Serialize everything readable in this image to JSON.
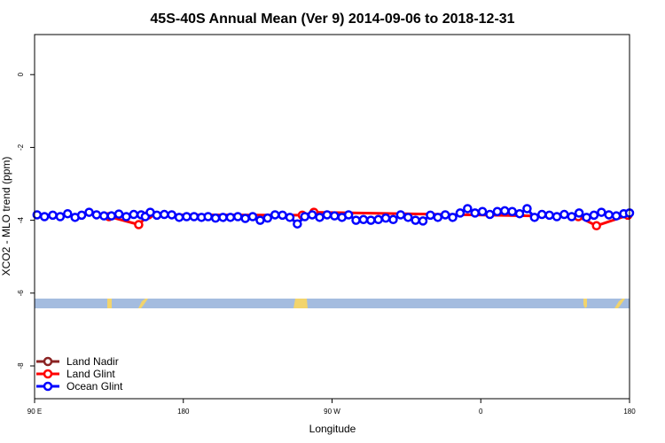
{
  "chart_data": {
    "type": "line",
    "title": "45S-40S Annual Mean (Ver 9)   2014-09-06 to 2018-12-31",
    "xlabel": "Longitude",
    "ylabel": "XCO2 - MLO trend (ppm)",
    "xlim": [
      90,
      450
    ],
    "ylim": [
      -8.9,
      1.1
    ],
    "xticks": [
      {
        "value": 90,
        "label": "90 E"
      },
      {
        "value": 180,
        "label": "180"
      },
      {
        "value": 270,
        "label": "90 W"
      },
      {
        "value": 360,
        "label": "0"
      },
      {
        "value": 450,
        "label": "90 E"
      },
      {
        "value": 540,
        "label": "180"
      }
    ],
    "yticks": [
      0,
      -2,
      -4,
      -6,
      -8
    ],
    "legend_position": "bottom-left",
    "series": [
      {
        "name": "Land Nadir",
        "color": "#8b2323",
        "points": []
      },
      {
        "name": "Land Glint",
        "color": "#ff0000",
        "points": [
          [
            135.0,
            -3.9
          ],
          [
            153.0,
            -4.12
          ],
          [
            159.0,
            -3.85
          ],
          [
            252.0,
            -3.86
          ],
          [
            259.0,
            -3.78
          ],
          [
            419.0,
            -3.9
          ],
          [
            430.0,
            -4.15
          ],
          [
            449.0,
            -3.86
          ]
        ]
      },
      {
        "name": "Ocean Glint",
        "color": "#0000ff",
        "points": [
          [
            91.5,
            -3.85
          ],
          [
            96.0,
            -3.9
          ],
          [
            101.0,
            -3.86
          ],
          [
            105.5,
            -3.9
          ],
          [
            110.0,
            -3.82
          ],
          [
            114.5,
            -3.92
          ],
          [
            118.5,
            -3.86
          ],
          [
            123.0,
            -3.78
          ],
          [
            127.5,
            -3.85
          ],
          [
            132.0,
            -3.88
          ],
          [
            136.5,
            -3.88
          ],
          [
            141.0,
            -3.83
          ],
          [
            145.5,
            -3.9
          ],
          [
            150.0,
            -3.84
          ],
          [
            154.5,
            -3.85
          ],
          [
            157.0,
            -3.9
          ],
          [
            160.0,
            -3.78
          ],
          [
            164.0,
            -3.86
          ],
          [
            168.5,
            -3.84
          ],
          [
            173.0,
            -3.85
          ],
          [
            177.5,
            -3.92
          ],
          [
            182.0,
            -3.9
          ],
          [
            186.5,
            -3.9
          ],
          [
            191.0,
            -3.92
          ],
          [
            195.0,
            -3.9
          ],
          [
            199.5,
            -3.94
          ],
          [
            204.0,
            -3.92
          ],
          [
            208.5,
            -3.92
          ],
          [
            213.0,
            -3.9
          ],
          [
            217.5,
            -3.95
          ],
          [
            222.0,
            -3.9
          ],
          [
            226.5,
            -4.0
          ],
          [
            231.0,
            -3.94
          ],
          [
            235.5,
            -3.85
          ],
          [
            240.0,
            -3.86
          ],
          [
            244.5,
            -3.92
          ],
          [
            249.0,
            -4.1
          ],
          [
            253.5,
            -3.9
          ],
          [
            258.0,
            -3.85
          ],
          [
            262.5,
            -3.92
          ],
          [
            267.0,
            -3.85
          ],
          [
            271.5,
            -3.88
          ],
          [
            276.0,
            -3.92
          ],
          [
            280.0,
            -3.85
          ],
          [
            284.5,
            -4.0
          ],
          [
            289.0,
            -3.98
          ],
          [
            293.5,
            -4.0
          ],
          [
            298.0,
            -3.98
          ],
          [
            302.5,
            -3.94
          ],
          [
            307.0,
            -3.98
          ],
          [
            311.5,
            -3.85
          ],
          [
            316.0,
            -3.92
          ],
          [
            320.5,
            -4.0
          ],
          [
            325.0,
            -4.02
          ],
          [
            329.5,
            -3.86
          ],
          [
            334.0,
            -3.92
          ],
          [
            338.5,
            -3.85
          ],
          [
            343.0,
            -3.92
          ],
          [
            347.5,
            -3.8
          ],
          [
            352.0,
            -3.68
          ],
          [
            356.5,
            -3.8
          ],
          [
            361.0,
            -3.76
          ],
          [
            365.5,
            -3.84
          ],
          [
            370.0,
            -3.76
          ],
          [
            374.5,
            -3.74
          ],
          [
            379.0,
            -3.76
          ],
          [
            383.5,
            -3.82
          ],
          [
            388.0,
            -3.68
          ],
          [
            392.5,
            -3.92
          ],
          [
            397.0,
            -3.84
          ],
          [
            401.5,
            -3.86
          ],
          [
            406.0,
            -3.9
          ],
          [
            410.5,
            -3.84
          ],
          [
            415.0,
            -3.9
          ],
          [
            419.5,
            -3.8
          ],
          [
            424.0,
            -3.92
          ],
          [
            428.5,
            -3.86
          ],
          [
            433.0,
            -3.78
          ],
          [
            437.5,
            -3.85
          ],
          [
            442.0,
            -3.88
          ],
          [
            446.5,
            -3.82
          ],
          [
            450.0,
            -3.8
          ]
        ]
      }
    ]
  }
}
